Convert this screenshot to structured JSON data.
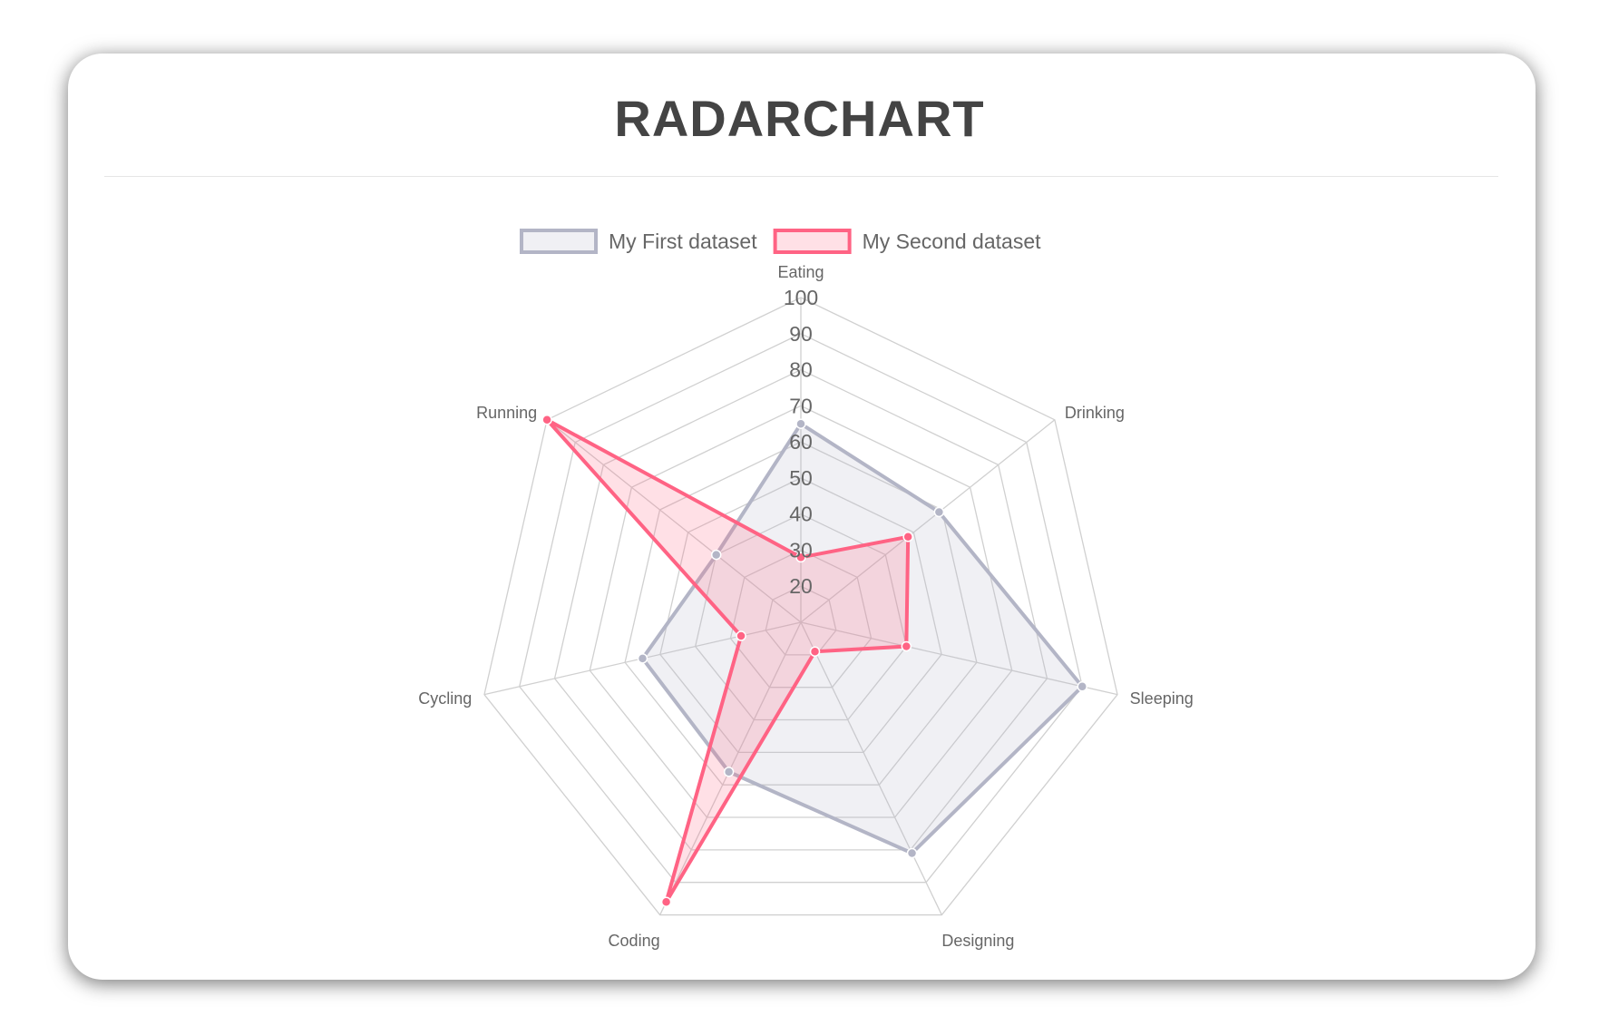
{
  "title": "RADARCHART",
  "chart_data": {
    "type": "radar",
    "labels": [
      "Eating",
      "Drinking",
      "Sleeping",
      "Designing",
      "Coding",
      "Cycling",
      "Running"
    ],
    "series": [
      {
        "name": "My First dataset",
        "values": [
          65,
          59,
          90,
          81,
          56,
          55,
          40
        ],
        "color": "#b3b5c6",
        "fill": "rgba(179,181,198,0.2)"
      },
      {
        "name": "My Second dataset",
        "values": [
          28,
          48,
          40,
          19,
          96,
          27,
          100
        ],
        "color": "#ff6384",
        "fill": "rgba(255,99,132,0.2)"
      }
    ],
    "rlim": [
      10,
      100
    ],
    "ticks": [
      "20",
      "30",
      "40",
      "50",
      "60",
      "70",
      "80",
      "90",
      "100"
    ],
    "grid": true,
    "legend": "top"
  }
}
